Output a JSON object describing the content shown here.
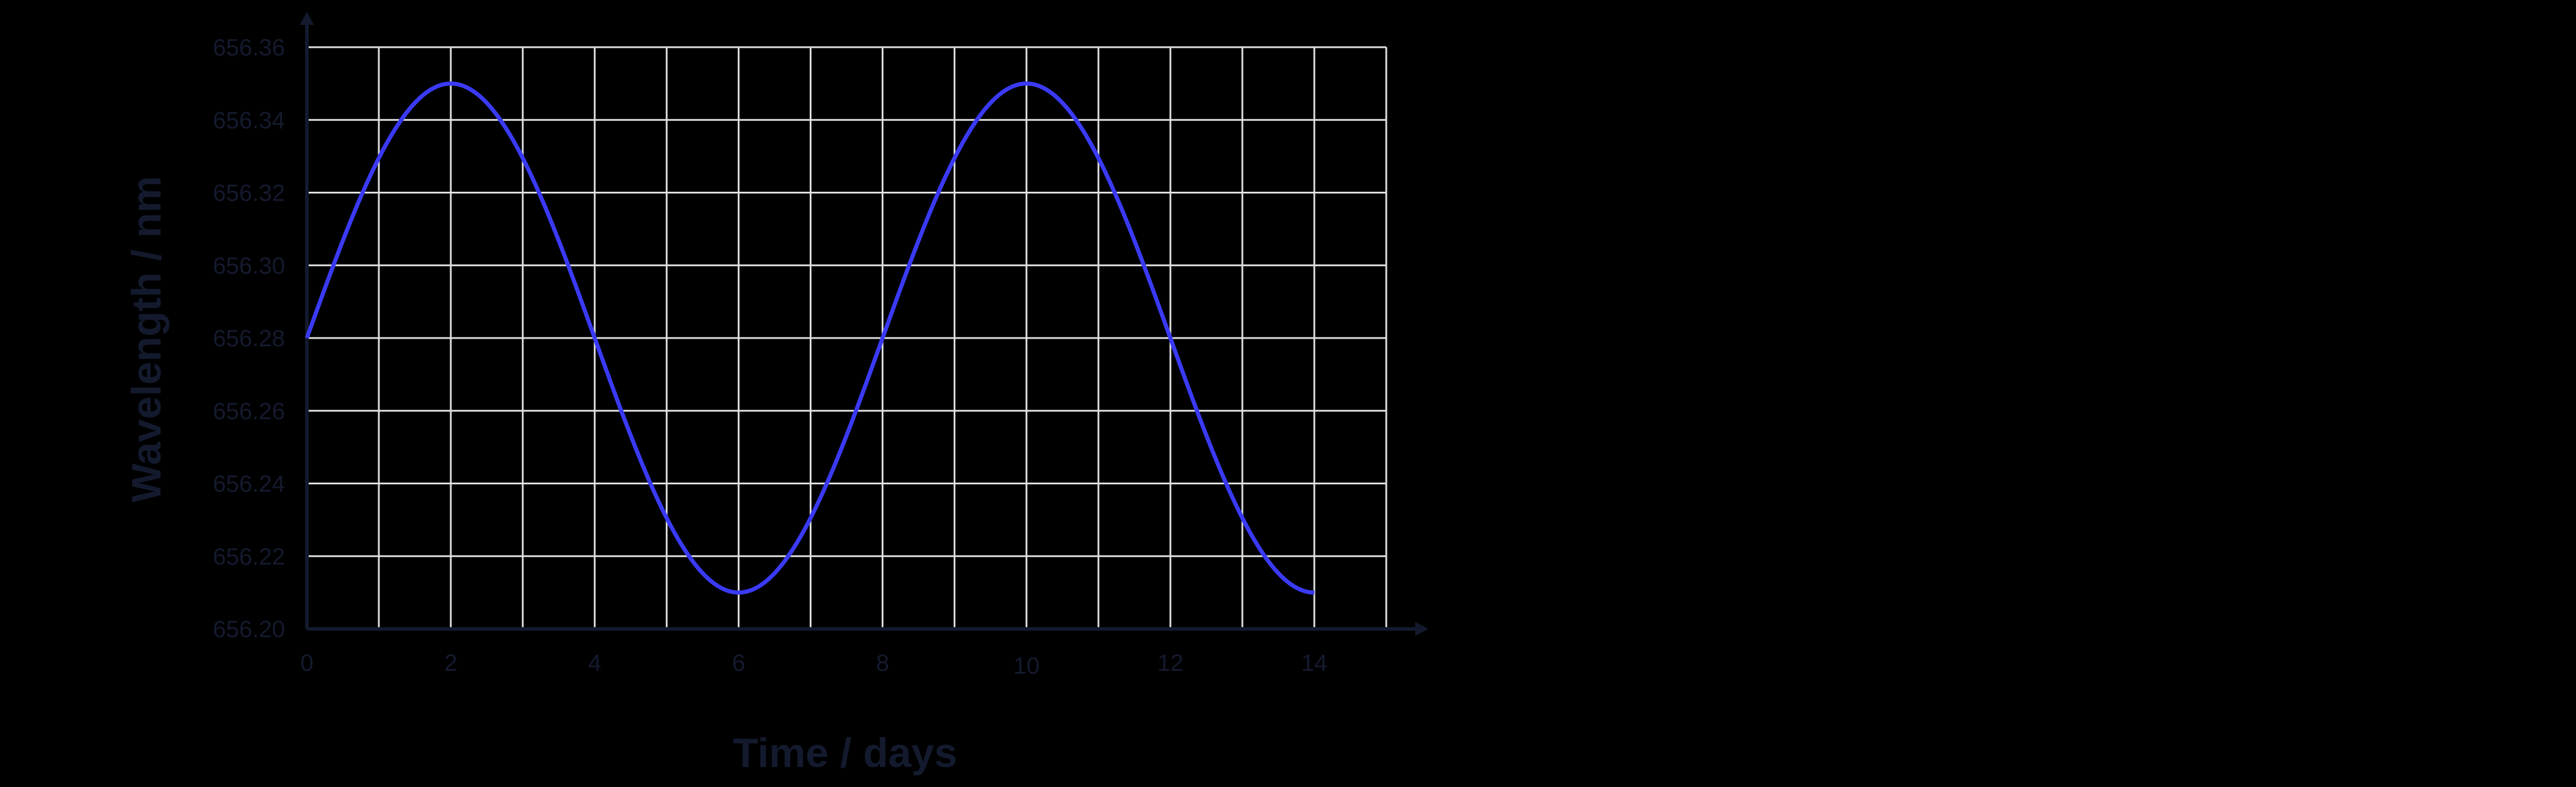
{
  "chart_data": {
    "type": "line",
    "title": "",
    "xlabel": "Time / days",
    "ylabel": "Wavelength / nm",
    "xlim": [
      0,
      15
    ],
    "ylim": [
      656.2,
      656.36
    ],
    "x_ticks": [
      0,
      2,
      4,
      6,
      8,
      10,
      12,
      14
    ],
    "x_tick_labels": [
      "0",
      "2",
      "4",
      "6",
      "8",
      "10",
      "12",
      "14"
    ],
    "y_ticks": [
      656.2,
      656.22,
      656.24,
      656.26,
      656.28,
      656.3,
      656.32,
      656.34,
      656.36
    ],
    "y_tick_labels": [
      "656.20",
      "656.22",
      "656.24",
      "656.26",
      "656.28",
      "656.30",
      "656.32",
      "656.34",
      "656.36"
    ],
    "grid": true,
    "grid_x_step": 1,
    "grid_y_step": 0.02,
    "legend": null,
    "series": [
      {
        "name": "Wavelength",
        "color": "#3a3af5",
        "x": [
          0,
          1,
          2,
          3,
          4,
          5,
          6,
          7,
          8,
          9,
          10,
          11,
          12,
          13,
          14
        ],
        "values": [
          656.28,
          656.329,
          656.35,
          656.329,
          656.28,
          656.231,
          656.21,
          656.231,
          656.28,
          656.329,
          656.35,
          656.329,
          656.28,
          656.231,
          656.21
        ],
        "model": {
          "mean": 656.28,
          "amplitude": 0.07,
          "period_days": 8,
          "phase": "sine, rising at t=0"
        }
      }
    ]
  },
  "colors": {
    "background": "#000000",
    "grid": "#e0e0e0",
    "axis": "#141a2e",
    "text": "#141a2e",
    "curve": "#3a3af5"
  }
}
